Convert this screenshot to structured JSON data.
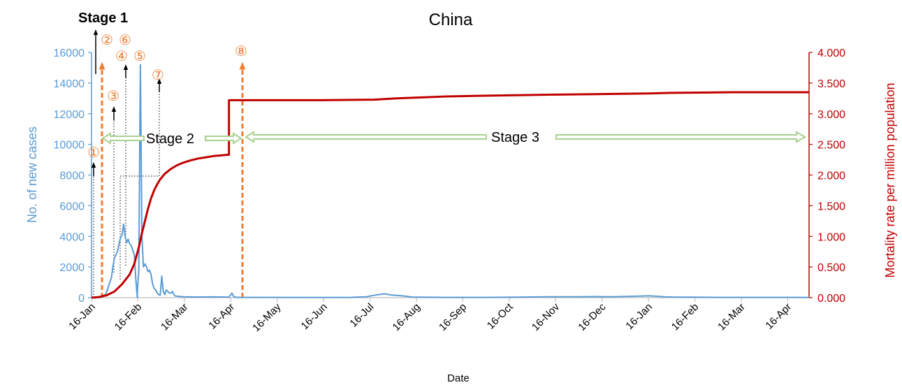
{
  "chart_data": {
    "type": "line",
    "title": "China",
    "xlabel": "Date",
    "ylabel_left": "No. of new cases",
    "ylabel_right": "Mortality rate per million population",
    "x_ticks": [
      "16-Jan",
      "16-Feb",
      "16-Mar",
      "16-Apr",
      "16-May",
      "16-Jun",
      "16-Jul",
      "16-Aug",
      "16-Sep",
      "16-Oct",
      "16-Nov",
      "16-Dec",
      "16-Jan",
      "16-Feb",
      "16-Mar",
      "16-Apr"
    ],
    "y_left_ticks": [
      "0",
      "2000",
      "4000",
      "6000",
      "8000",
      "10000",
      "12000",
      "14000",
      "16000"
    ],
    "y_right_ticks": [
      "0.000",
      "0.500",
      "1.000",
      "1.500",
      "2.000",
      "2.500",
      "3.000",
      "3.500",
      "4.000"
    ],
    "ylim_left": [
      0,
      16000
    ],
    "ylim_right": [
      0,
      4
    ],
    "x_range_days": [
      0,
      470
    ],
    "colors": {
      "new_cases": "#5B9BD5",
      "mortality": "#C00000",
      "orange": "#ED7D31",
      "stage_arrow": "#A9D18E"
    },
    "series": [
      {
        "axis": "left",
        "color": "#5B9BD5",
        "points": [
          [
            0,
            0
          ],
          [
            5,
            0
          ],
          [
            7,
            50
          ],
          [
            9,
            200
          ],
          [
            10,
            400
          ],
          [
            11,
            700
          ],
          [
            12,
            1000
          ],
          [
            13,
            1300
          ],
          [
            14,
            2000
          ],
          [
            15,
            2600
          ],
          [
            16,
            2800
          ],
          [
            17,
            3000
          ],
          [
            18,
            3500
          ],
          [
            19,
            3900
          ],
          [
            20,
            4100
          ],
          [
            21,
            4800
          ],
          [
            22,
            4000
          ],
          [
            23,
            3600
          ],
          [
            24,
            3800
          ],
          [
            25,
            3500
          ],
          [
            26,
            3400
          ],
          [
            27,
            3100
          ],
          [
            28,
            2800
          ],
          [
            29,
            1200
          ],
          [
            30,
            0
          ],
          [
            30,
            400
          ],
          [
            31,
            1800
          ],
          [
            32,
            15200
          ],
          [
            33,
            4000
          ],
          [
            34,
            2000
          ],
          [
            35,
            2200
          ],
          [
            36,
            2000
          ],
          [
            37,
            1700
          ],
          [
            38,
            1800
          ],
          [
            39,
            1500
          ],
          [
            40,
            900
          ],
          [
            41,
            600
          ],
          [
            42,
            500
          ],
          [
            43,
            300
          ],
          [
            44,
            200
          ],
          [
            45,
            150
          ],
          [
            46,
            1400
          ],
          [
            47,
            400
          ],
          [
            48,
            200
          ],
          [
            49,
            500
          ],
          [
            50,
            400
          ],
          [
            51,
            300
          ],
          [
            52,
            300
          ],
          [
            53,
            400
          ],
          [
            54,
            200
          ],
          [
            55,
            100
          ],
          [
            60,
            60
          ],
          [
            70,
            40
          ],
          [
            80,
            50
          ],
          [
            90,
            30
          ],
          [
            92,
            300
          ],
          [
            93,
            80
          ],
          [
            95,
            20
          ],
          [
            110,
            20
          ],
          [
            140,
            10
          ],
          [
            160,
            15
          ],
          [
            170,
            20
          ],
          [
            180,
            60
          ],
          [
            185,
            150
          ],
          [
            188,
            200
          ],
          [
            192,
            250
          ],
          [
            196,
            180
          ],
          [
            200,
            150
          ],
          [
            205,
            100
          ],
          [
            210,
            40
          ],
          [
            230,
            20
          ],
          [
            260,
            20
          ],
          [
            280,
            30
          ],
          [
            300,
            60
          ],
          [
            320,
            60
          ],
          [
            330,
            70
          ],
          [
            340,
            60
          ],
          [
            350,
            80
          ],
          [
            360,
            100
          ],
          [
            365,
            120
          ],
          [
            370,
            90
          ],
          [
            375,
            60
          ],
          [
            380,
            40
          ],
          [
            390,
            30
          ],
          [
            410,
            20
          ],
          [
            440,
            20
          ],
          [
            470,
            15
          ]
        ]
      },
      {
        "axis": "right",
        "color": "#C00000",
        "points": [
          [
            0,
            0
          ],
          [
            5,
            0.01
          ],
          [
            10,
            0.04
          ],
          [
            15,
            0.1
          ],
          [
            20,
            0.22
          ],
          [
            25,
            0.38
          ],
          [
            28,
            0.55
          ],
          [
            31,
            0.82
          ],
          [
            33,
            1.05
          ],
          [
            35,
            1.25
          ],
          [
            37,
            1.45
          ],
          [
            39,
            1.62
          ],
          [
            41,
            1.75
          ],
          [
            43,
            1.85
          ],
          [
            45,
            1.93
          ],
          [
            48,
            2.02
          ],
          [
            52,
            2.1
          ],
          [
            56,
            2.16
          ],
          [
            60,
            2.2
          ],
          [
            65,
            2.24
          ],
          [
            70,
            2.27
          ],
          [
            75,
            2.29
          ],
          [
            80,
            2.31
          ],
          [
            85,
            2.32
          ],
          [
            89,
            2.33
          ],
          [
            90,
            2.33
          ],
          [
            90,
            3.22
          ],
          [
            110,
            3.22
          ],
          [
            150,
            3.22
          ],
          [
            185,
            3.23
          ],
          [
            200,
            3.25
          ],
          [
            230,
            3.28
          ],
          [
            250,
            3.29
          ],
          [
            300,
            3.31
          ],
          [
            330,
            3.32
          ],
          [
            365,
            3.33
          ],
          [
            380,
            3.34
          ],
          [
            420,
            3.35
          ],
          [
            470,
            3.35
          ]
        ]
      }
    ],
    "annotations": {
      "stage1": "Stage 1",
      "stage2": "Stage 2",
      "stage3": "Stage 3",
      "markers": [
        "①",
        "②",
        "③",
        "④",
        "⑤",
        "⑥",
        "⑦",
        "⑧"
      ]
    }
  }
}
